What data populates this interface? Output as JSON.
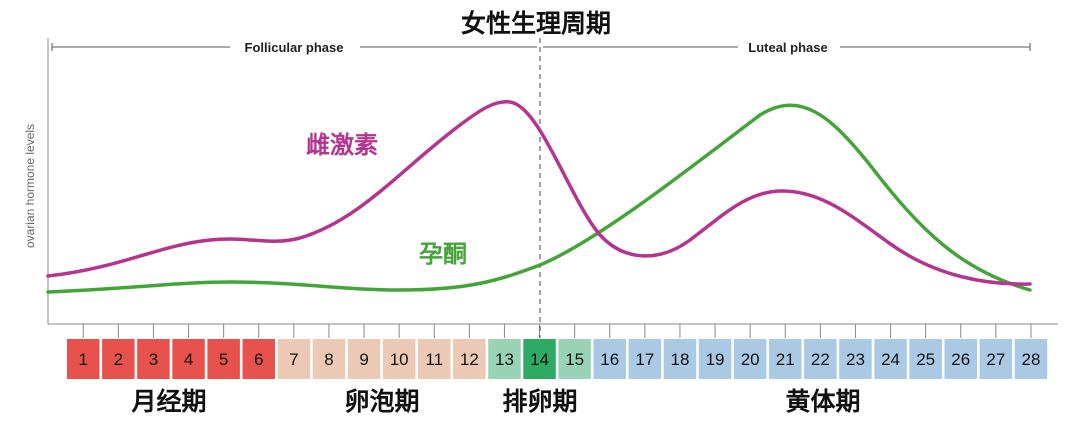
{
  "title": "女性生理周期",
  "y_axis_label": "ovarian hormone levels",
  "phases": {
    "follicular": "Follicular phase",
    "luteal": "Luteal phase"
  },
  "curves": {
    "estrogen": {
      "label": "雌激素",
      "color": "#b5348f"
    },
    "progesterone": {
      "label": "孕酮",
      "color": "#43a538"
    }
  },
  "stages": {
    "menstrual": "月经期",
    "follicular": "卵泡期",
    "ovulation": "排卵期",
    "luteal": "黄体期"
  },
  "colors": {
    "menstrual": "#e8524c",
    "follicular": "#ecc9b5",
    "ovulation_light": "#99d3b5",
    "ovulation_day": "#2eaa65",
    "luteal": "#a9c9e4"
  },
  "days": [
    {
      "label": "1",
      "stage": "menstrual"
    },
    {
      "label": "2",
      "stage": "menstrual"
    },
    {
      "label": "3",
      "stage": "menstrual"
    },
    {
      "label": "4",
      "stage": "menstrual"
    },
    {
      "label": "5",
      "stage": "menstrual"
    },
    {
      "label": "6",
      "stage": "menstrual"
    },
    {
      "label": "7",
      "stage": "follicular"
    },
    {
      "label": "8",
      "stage": "follicular"
    },
    {
      "label": "9",
      "stage": "follicular"
    },
    {
      "label": "10",
      "stage": "follicular"
    },
    {
      "label": "11",
      "stage": "follicular"
    },
    {
      "label": "12",
      "stage": "follicular"
    },
    {
      "label": "13",
      "stage": "ovulation_light"
    },
    {
      "label": "14",
      "stage": "ovulation_day"
    },
    {
      "label": "15",
      "stage": "ovulation_light"
    },
    {
      "label": "16",
      "stage": "luteal"
    },
    {
      "label": "17",
      "stage": "luteal"
    },
    {
      "label": "18",
      "stage": "luteal"
    },
    {
      "label": "19",
      "stage": "luteal"
    },
    {
      "label": "20",
      "stage": "luteal"
    },
    {
      "label": "21",
      "stage": "luteal"
    },
    {
      "label": "22",
      "stage": "luteal"
    },
    {
      "label": "23",
      "stage": "luteal"
    },
    {
      "label": "24",
      "stage": "luteal"
    },
    {
      "label": "25",
      "stage": "luteal"
    },
    {
      "label": "26",
      "stage": "luteal"
    },
    {
      "label": "27",
      "stage": "luteal"
    },
    {
      "label": "28",
      "stage": "luteal"
    }
  ]
}
